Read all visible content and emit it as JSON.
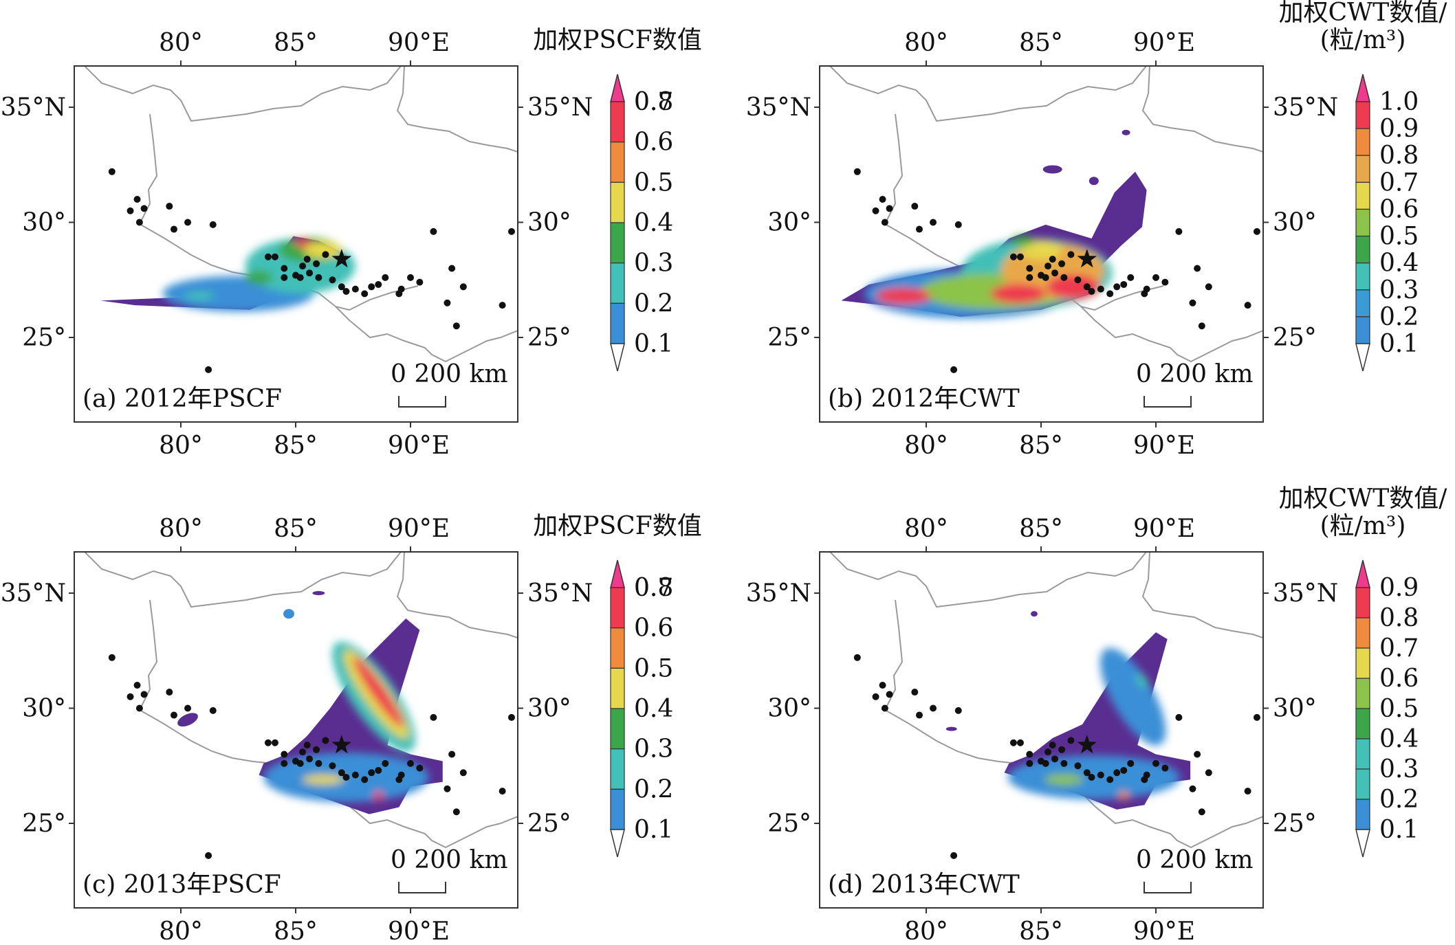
{
  "palette": [
    "#5a2d91",
    "#3a8fd6",
    "#43c0b7",
    "#3aa84a",
    "#e6d84c",
    "#f08a3c",
    "#ee3b4f",
    "#ee3b8c"
  ],
  "terrain_color": "#9a9a9a",
  "city_color": "#111111",
  "panels": [
    {
      "id": "a",
      "label": "(a) 2012年PSCF",
      "lon_ticks": [
        "80°",
        "85°",
        "90°E"
      ],
      "lat_ticks": [
        "35°N",
        "30°",
        "25°"
      ],
      "scale_label": "0   200 km",
      "colorbar": {
        "title_lines": [
          "加权PSCF数值"
        ],
        "ticks": [
          "0.1",
          "0.2",
          "0.3",
          "0.4",
          "0.5",
          "0.6",
          "0.7",
          "0.8"
        ],
        "colors": [
          "#5a2d91",
          "#3a8fd6",
          "#43c0b7",
          "#3aa84a",
          "#e6d84c",
          "#f08a3c",
          "#ee3b4f",
          "#ee3b8c"
        ]
      },
      "pattern": "west"
    },
    {
      "id": "b",
      "label": "(b) 2012年CWT",
      "lon_ticks": [
        "80°",
        "85°",
        "90°E"
      ],
      "lat_ticks": [
        "35°N",
        "30°",
        "25°"
      ],
      "scale_label": "0   200 km",
      "colorbar": {
        "title_lines": [
          "加权CWT数值/",
          "(粒/m³)"
        ],
        "ticks": [
          "0.1",
          "0.2",
          "0.3",
          "0.4",
          "0.5",
          "0.6",
          "0.7",
          "0.8",
          "0.9",
          "1.0"
        ],
        "colors": [
          "#5a2d91",
          "#3a8fd6",
          "#3a9bd6",
          "#43c0b7",
          "#3aa84a",
          "#8cc34a",
          "#e6d84c",
          "#e8a84a",
          "#f08a3c",
          "#ee3b4f",
          "#ee3b8c"
        ]
      },
      "pattern": "west-ne"
    },
    {
      "id": "c",
      "label": "(c) 2013年PSCF",
      "lon_ticks": [
        "80°",
        "85°",
        "90°E"
      ],
      "lat_ticks": [
        "35°N",
        "30°",
        "25°"
      ],
      "scale_label": "0   200 km",
      "colorbar": {
        "title_lines": [
          "加权PSCF数值"
        ],
        "ticks": [
          "0.1",
          "0.2",
          "0.3",
          "0.4",
          "0.5",
          "0.6",
          "0.7",
          "0.8"
        ],
        "colors": [
          "#5a2d91",
          "#3a8fd6",
          "#43c0b7",
          "#3aa84a",
          "#e6d84c",
          "#f08a3c",
          "#ee3b4f",
          "#ee3b8c"
        ]
      },
      "pattern": "ne-strong"
    },
    {
      "id": "d",
      "label": "(d) 2013年CWT",
      "lon_ticks": [
        "80°",
        "85°",
        "90°E"
      ],
      "lat_ticks": [
        "35°N",
        "30°",
        "25°"
      ],
      "scale_label": "0   200 km",
      "colorbar": {
        "title_lines": [
          "加权CWT数值/",
          "(粒/m³)"
        ],
        "ticks": [
          "0.1",
          "0.2",
          "0.3",
          "0.4",
          "0.5",
          "0.6",
          "0.7",
          "0.8",
          "0.9"
        ],
        "colors": [
          "#5a2d91",
          "#3a8fd6",
          "#43c0b7",
          "#43c0b7",
          "#3aa84a",
          "#8cc34a",
          "#e6d84c",
          "#f08a3c",
          "#ee3b4f",
          "#ee3b8c"
        ]
      },
      "pattern": "ne-weak"
    }
  ]
}
